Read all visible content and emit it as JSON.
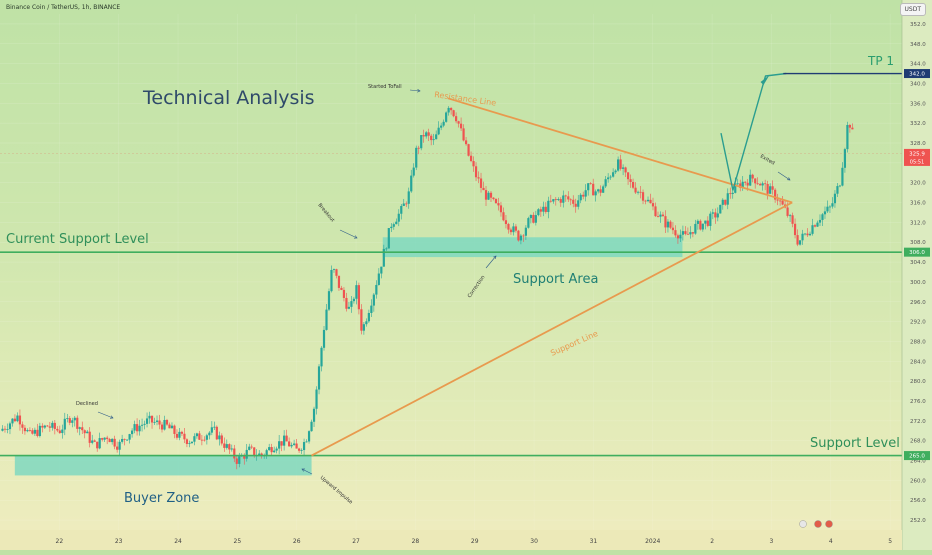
{
  "header": {
    "title": "Binance Coin / TetherUS, 1h, BINANCE",
    "currency": "USDT"
  },
  "price_readout": {
    "current": "325.9",
    "countdown": "05:51"
  },
  "colors": {
    "up": "#26a69a",
    "down": "#ef5350",
    "trendline": "#e89a4e",
    "support": "#3fae5e",
    "zone": "#7fd8c0",
    "forecast": "#2a9d8f",
    "tp_line": "#1f3b73"
  },
  "chart_data": {
    "type": "candlestick",
    "x_ticks": [
      "22",
      "23",
      "24",
      "25",
      "26",
      "27",
      "28",
      "29",
      "30",
      "31",
      "2024",
      "2",
      "3",
      "4",
      "5"
    ],
    "y_range": [
      250,
      354
    ],
    "y_ticks": [
      252,
      256,
      260,
      264,
      268,
      272,
      276,
      280,
      284,
      288,
      292,
      296,
      300,
      304,
      308,
      312,
      316,
      320,
      324,
      328,
      332,
      336,
      340,
      344,
      348,
      352
    ],
    "annotations": {
      "main_title": "Technical Analysis",
      "tp": "TP 1",
      "tp_price": "342.0",
      "resistance": "Resistance Line",
      "support_line": "Support Line",
      "current_support": "Current Support Level",
      "current_support_price": "306.0",
      "support_level": "Support Level",
      "support_level_price": "265.0",
      "support_area": "Support Area",
      "buyer_zone": "Buyer Zone",
      "started_to_fall": "Started ToFall",
      "declined": "Declined",
      "breakout": "Breakout",
      "correction": "Correction",
      "exited": "Exited",
      "upward_impulse": "Upward Impulse"
    },
    "levels": {
      "current_support": 306,
      "support_level": 265,
      "tp": 342
    },
    "zones": {
      "support_area": {
        "x": [
          27.45,
          32.5
        ],
        "y": [
          305,
          309
        ]
      },
      "buyer_zone": {
        "x": [
          21.25,
          26.25
        ],
        "y": [
          261,
          265
        ]
      }
    },
    "resistance_line": [
      [
        28.55,
        337
      ],
      [
        34.35,
        316
      ]
    ],
    "support_line": [
      [
        26.25,
        265
      ],
      [
        34.35,
        316
      ]
    ],
    "forecast_path": [
      [
        33.15,
        330
      ],
      [
        33.35,
        318.5
      ],
      [
        33.9,
        341.5
      ],
      [
        34.25,
        342
      ]
    ],
    "price_anchors": [
      [
        21.0,
        270
      ],
      [
        21.3,
        273
      ],
      [
        21.5,
        269
      ],
      [
        21.8,
        271
      ],
      [
        22.0,
        270
      ],
      [
        22.2,
        273
      ],
      [
        22.4,
        270
      ],
      [
        22.6,
        267
      ],
      [
        22.8,
        269
      ],
      [
        23.0,
        267
      ],
      [
        23.2,
        270
      ],
      [
        23.5,
        272
      ],
      [
        23.8,
        271
      ],
      [
        24.0,
        269
      ],
      [
        24.2,
        268
      ],
      [
        24.4,
        269
      ],
      [
        24.6,
        270
      ],
      [
        24.8,
        267
      ],
      [
        25.0,
        264
      ],
      [
        25.2,
        266
      ],
      [
        25.4,
        265
      ],
      [
        25.6,
        267
      ],
      [
        25.8,
        268
      ],
      [
        26.0,
        266
      ],
      [
        26.15,
        268
      ],
      [
        26.3,
        275
      ],
      [
        26.45,
        290
      ],
      [
        26.6,
        303
      ],
      [
        26.75,
        298
      ],
      [
        26.9,
        294
      ],
      [
        27.0,
        299
      ],
      [
        27.1,
        290
      ],
      [
        27.2,
        294
      ],
      [
        27.3,
        298
      ],
      [
        27.45,
        305
      ],
      [
        27.6,
        312
      ],
      [
        27.75,
        314
      ],
      [
        27.9,
        318
      ],
      [
        28.0,
        326
      ],
      [
        28.15,
        330
      ],
      [
        28.3,
        328
      ],
      [
        28.45,
        332
      ],
      [
        28.55,
        336
      ],
      [
        28.7,
        333
      ],
      [
        28.85,
        327
      ],
      [
        29.0,
        322
      ],
      [
        29.15,
        318
      ],
      [
        29.3,
        316
      ],
      [
        29.45,
        314
      ],
      [
        29.6,
        311
      ],
      [
        29.75,
        309
      ],
      [
        29.9,
        312
      ],
      [
        30.1,
        314
      ],
      [
        30.3,
        316
      ],
      [
        30.5,
        317
      ],
      [
        30.7,
        316
      ],
      [
        30.9,
        319
      ],
      [
        31.1,
        318
      ],
      [
        31.3,
        322
      ],
      [
        31.4,
        324
      ],
      [
        31.6,
        320
      ],
      [
        31.8,
        318
      ],
      [
        32.0,
        315
      ],
      [
        32.2,
        312
      ],
      [
        32.4,
        310
      ],
      [
        32.55,
        309
      ],
      [
        32.7,
        311
      ],
      [
        32.9,
        312
      ],
      [
        33.1,
        314
      ],
      [
        33.3,
        318
      ],
      [
        33.5,
        320
      ],
      [
        33.7,
        321
      ],
      [
        33.9,
        319
      ],
      [
        34.1,
        317
      ],
      [
        34.3,
        313
      ],
      [
        34.45,
        308
      ],
      [
        34.6,
        310
      ],
      [
        34.8,
        313
      ],
      [
        35.0,
        315
      ],
      [
        35.15,
        320
      ],
      [
        35.3,
        333
      ],
      [
        35.4,
        328
      ]
    ]
  }
}
